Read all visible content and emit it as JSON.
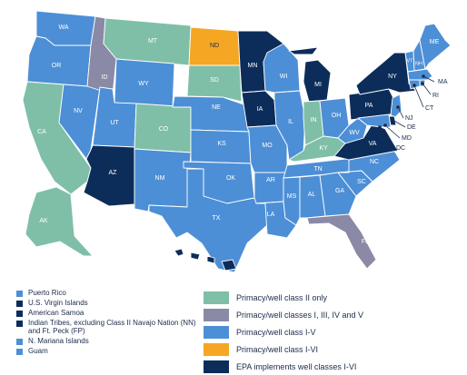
{
  "colors": {
    "class_ii_only": "#7fbfa8",
    "classes_i_iii_iv_v": "#8a89a6",
    "class_i_v": "#4d8fd6",
    "class_i_vi": "#f5a623",
    "epa_i_vi": "#0c2d5a",
    "border": "#ffffff"
  },
  "states": {
    "WA": {
      "label": "WA",
      "category": "class_i_v"
    },
    "OR": {
      "label": "OR",
      "category": "class_i_v"
    },
    "CA": {
      "label": "CA",
      "category": "class_ii_only"
    },
    "NV": {
      "label": "NV",
      "category": "class_i_v"
    },
    "ID": {
      "label": "ID",
      "category": "classes_i_iii_iv_v"
    },
    "MT": {
      "label": "MT",
      "category": "class_ii_only"
    },
    "WY": {
      "label": "WY",
      "category": "class_i_v"
    },
    "UT": {
      "label": "UT",
      "category": "class_i_v"
    },
    "AZ": {
      "label": "AZ",
      "category": "epa_i_vi"
    },
    "CO": {
      "label": "CO",
      "category": "class_ii_only"
    },
    "NM": {
      "label": "NM",
      "category": "class_i_v"
    },
    "ND": {
      "label": "ND",
      "category": "class_i_vi"
    },
    "SD": {
      "label": "SD",
      "category": "class_ii_only"
    },
    "NE": {
      "label": "NE",
      "category": "class_i_v"
    },
    "KS": {
      "label": "KS",
      "category": "class_i_v"
    },
    "OK": {
      "label": "OK",
      "category": "class_i_v"
    },
    "TX": {
      "label": "TX",
      "category": "class_i_v"
    },
    "MN": {
      "label": "MN",
      "category": "epa_i_vi"
    },
    "IA": {
      "label": "IA",
      "category": "epa_i_vi"
    },
    "MO": {
      "label": "MO",
      "category": "class_i_v"
    },
    "AR": {
      "label": "AR",
      "category": "class_i_v"
    },
    "LA": {
      "label": "LA",
      "category": "class_i_v"
    },
    "WI": {
      "label": "WI",
      "category": "class_i_v"
    },
    "IL": {
      "label": "IL",
      "category": "class_i_v"
    },
    "MI": {
      "label": "MI",
      "category": "epa_i_vi"
    },
    "IN": {
      "label": "IN",
      "category": "class_ii_only"
    },
    "OH": {
      "label": "OH",
      "category": "class_i_v"
    },
    "KY": {
      "label": "KY",
      "category": "class_ii_only"
    },
    "TN": {
      "label": "TN",
      "category": "class_i_v"
    },
    "MS": {
      "label": "MS",
      "category": "class_i_v"
    },
    "AL": {
      "label": "AL",
      "category": "class_i_v"
    },
    "GA": {
      "label": "GA",
      "category": "class_i_v"
    },
    "FL": {
      "label": "FL",
      "category": "classes_i_iii_iv_v"
    },
    "SC": {
      "label": "SC",
      "category": "class_i_v"
    },
    "NC": {
      "label": "NC",
      "category": "class_i_v"
    },
    "VA": {
      "label": "VA",
      "category": "epa_i_vi"
    },
    "WV": {
      "label": "WV",
      "category": "class_i_v"
    },
    "PA": {
      "label": "PA",
      "category": "epa_i_vi"
    },
    "NY": {
      "label": "NY",
      "category": "epa_i_vi"
    },
    "VT": {
      "label": "VT",
      "category": "class_i_v"
    },
    "NH": {
      "label": "NH",
      "category": "class_i_v"
    },
    "ME": {
      "label": "ME",
      "category": "class_i_v"
    },
    "MA": {
      "label": "MA",
      "category": "class_i_v"
    },
    "RI": {
      "label": "RI",
      "category": "class_i_v"
    },
    "CT": {
      "label": "CT",
      "category": "class_i_v"
    },
    "NJ": {
      "label": "NJ",
      "category": "class_i_v"
    },
    "DE": {
      "label": "DE",
      "category": "epa_i_vi"
    },
    "MD": {
      "label": "MD",
      "category": "class_i_v"
    },
    "DC": {
      "label": "DC",
      "category": "epa_i_vi"
    },
    "AK": {
      "label": "AK",
      "category": "class_ii_only"
    },
    "HI": {
      "label": "",
      "category": "epa_i_vi"
    }
  },
  "territories_legend": [
    {
      "label": "Puerto Rico",
      "category": "class_i_v"
    },
    {
      "label": "U.S. Virgin Islands",
      "category": "epa_i_vi"
    },
    {
      "label": "American Samoa",
      "category": "epa_i_vi"
    },
    {
      "label": "Indian Tribes, excluding Class II Navajo Nation (NN) and Ft. Peck (FP)",
      "category": "epa_i_vi"
    },
    {
      "label": "N. Mariana Islands",
      "category": "class_i_v"
    },
    {
      "label": "Guam",
      "category": "class_i_v"
    }
  ],
  "class_legend": [
    {
      "label": "Primacy/well class II only",
      "category": "class_ii_only"
    },
    {
      "label": "Primacy/well classes I, III, IV and V",
      "category": "classes_i_iii_iv_v"
    },
    {
      "label": "Primacy/well class I-V",
      "category": "class_i_v"
    },
    {
      "label": "Primacy/well class I-VI",
      "category": "class_i_vi"
    },
    {
      "label": "EPA implements well classes I-VI",
      "category": "epa_i_vi"
    }
  ]
}
